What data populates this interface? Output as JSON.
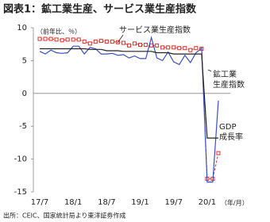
{
  "chart_data": {
    "type": "line",
    "title": "図表1：鉱工業生産、サービス業生産指数",
    "unit_label": "（前年比、％）",
    "x_label": "（年/月）",
    "source": "出所：CEIC、国家統計局より東洋証券作成",
    "categories": [
      "17/7",
      null,
      null,
      null,
      null,
      null,
      "18/1",
      null,
      null,
      null,
      null,
      null,
      "18/7",
      null,
      null,
      null,
      null,
      null,
      "19/1",
      null,
      null,
      null,
      null,
      null,
      "19/7",
      null,
      null,
      null,
      null,
      null,
      "20/1",
      null,
      null
    ],
    "ylim": [
      -15,
      10
    ],
    "yticks": [
      -15,
      -10,
      -5,
      0,
      5,
      10
    ],
    "series": [
      {
        "label": [
          "サービス業生産指数"
        ],
        "color": "#e0302a",
        "style": "dashed-square",
        "values": [
          8.3,
          8.3,
          8.3,
          8.2,
          8.1,
          8.2,
          8.2,
          8.2,
          7.9,
          7.6,
          7.9,
          8.0,
          7.9,
          7.9,
          7.8,
          7.7,
          7.3,
          7.6,
          7.4,
          7.4,
          7.3,
          7.3,
          7.0,
          7.0,
          7.0,
          6.9,
          6.9,
          6.6,
          6.9,
          6.8,
          -13.0,
          -13.0,
          -9.1
        ]
      },
      {
        "label": [
          "鉱工業",
          "生産指数"
        ],
        "color": "#3b4fc4",
        "style": "solid",
        "values": [
          6.4,
          6.0,
          6.6,
          6.2,
          6.1,
          6.2,
          7.2,
          7.2,
          6.0,
          7.0,
          6.8,
          6.0,
          6.0,
          6.1,
          5.8,
          5.9,
          5.4,
          5.7,
          5.3,
          5.3,
          8.5,
          5.4,
          5.0,
          6.3,
          4.8,
          4.4,
          5.8,
          4.7,
          6.2,
          6.9,
          -13.5,
          -13.5,
          -1.1
        ]
      },
      {
        "label": [
          "GDP",
          "成長率"
        ],
        "color": "#222222",
        "style": "solid",
        "values": [
          6.8,
          6.8,
          6.8,
          6.8,
          6.8,
          6.8,
          6.8,
          6.8,
          6.8,
          6.7,
          6.7,
          6.7,
          6.5,
          6.5,
          6.5,
          6.4,
          6.4,
          6.4,
          6.4,
          6.4,
          6.4,
          6.2,
          6.2,
          6.2,
          6.0,
          6.0,
          6.0,
          6.0,
          6.0,
          6.0,
          -6.8,
          -6.8,
          -6.8
        ]
      }
    ]
  }
}
